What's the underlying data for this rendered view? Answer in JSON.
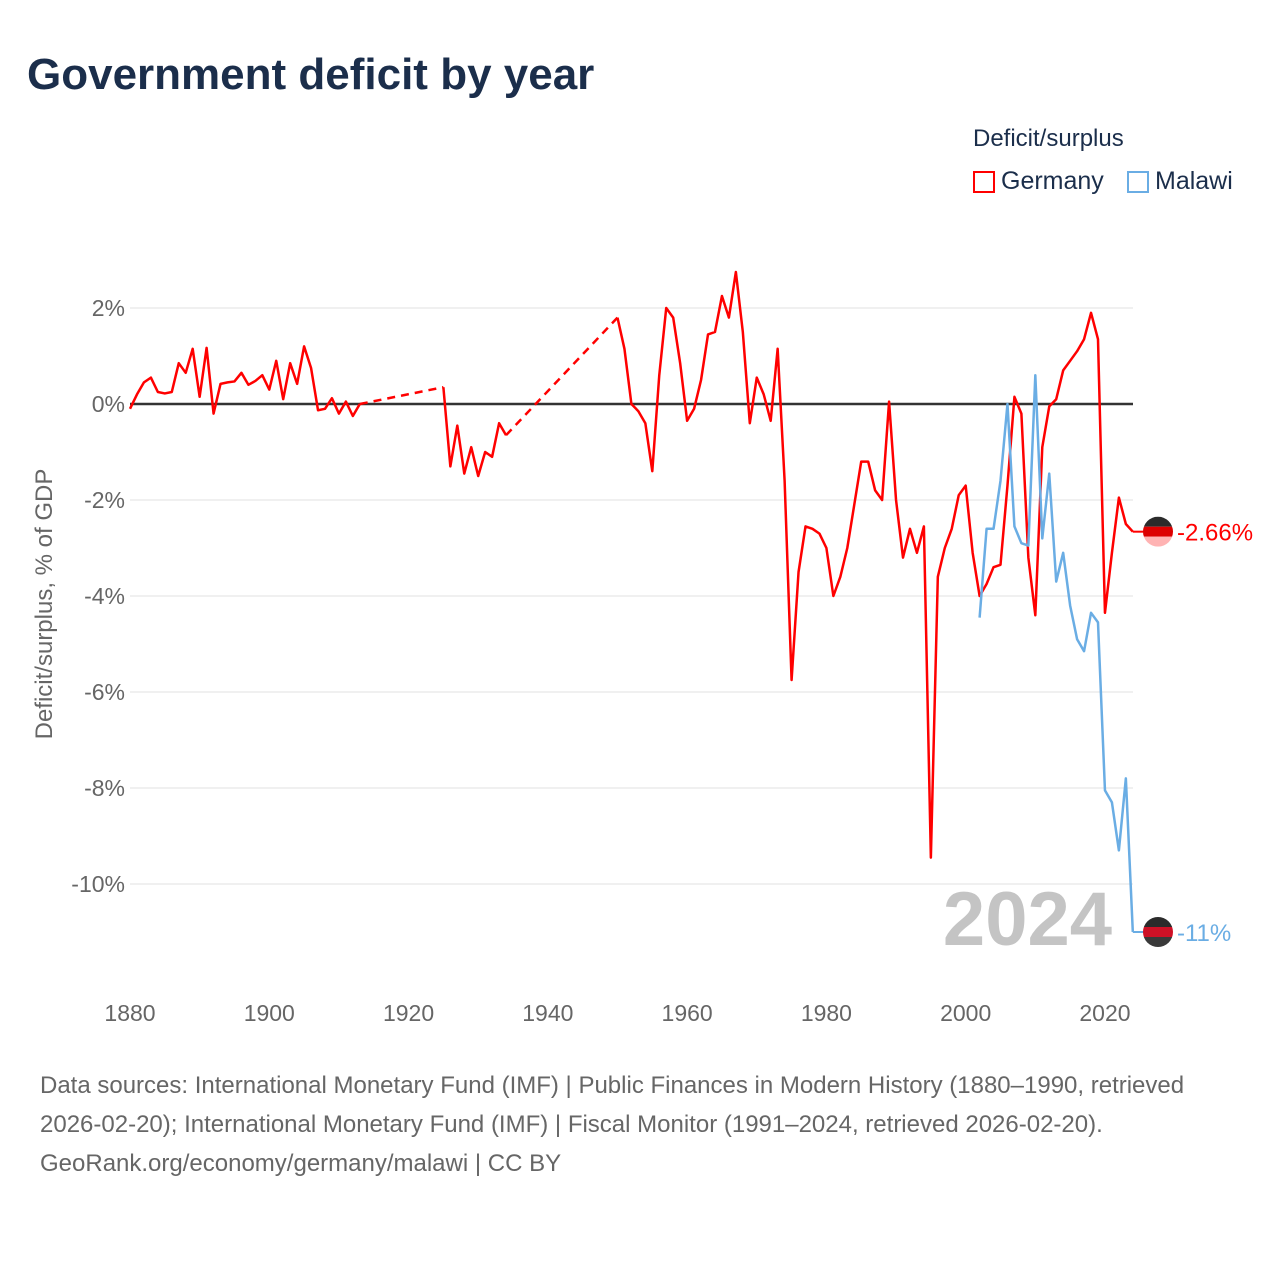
{
  "title": "Government deficit by year",
  "legend": {
    "title": "Deficit/surplus",
    "items": [
      {
        "label": "Germany",
        "color": "#ff0000"
      },
      {
        "label": "Malawi",
        "color": "#6aade4"
      }
    ]
  },
  "sources": "Data sources: International Monetary Fund (IMF) | Public Finances in Modern History (1880–1990, retrieved 2026-02-20); International Monetary Fund (IMF) | Fiscal Monitor (1991–2024, retrieved 2026-02-20).",
  "credit": "GeoRank.org/economy/germany/malawi | CC BY",
  "chart_data": {
    "type": "line",
    "title": "Government deficit by year",
    "xlabel": "",
    "ylabel": "Deficit/surplus, % of GDP",
    "xlim": [
      1880,
      2024
    ],
    "ylim": [
      -11.5,
      3
    ],
    "x_ticks": [
      1880,
      1900,
      1920,
      1940,
      1960,
      1980,
      2000,
      2020
    ],
    "x_tick_labels": [
      "1880",
      "1900",
      "1920",
      "1940",
      "1960",
      "1980",
      "2000",
      "2020"
    ],
    "y_ticks": [
      2,
      0,
      -2,
      -4,
      -6,
      -8,
      -10
    ],
    "y_tick_labels": [
      "2%",
      "0%",
      "-2%",
      "-4%",
      "-6%",
      "-8%",
      "-10%"
    ],
    "grid": true,
    "legend_position": "top-right",
    "year_watermark": "2024",
    "series": [
      {
        "name": "Germany",
        "color": "#ff0000",
        "end_label": "-2.66%",
        "points": [
          [
            1880,
            -0.1
          ],
          [
            1881,
            0.2
          ],
          [
            1882,
            0.45
          ],
          [
            1883,
            0.55
          ],
          [
            1884,
            0.25
          ],
          [
            1885,
            0.22
          ],
          [
            1886,
            0.25
          ],
          [
            1887,
            0.85
          ],
          [
            1888,
            0.65
          ],
          [
            1889,
            1.15
          ],
          [
            1890,
            0.15
          ],
          [
            1891,
            1.17
          ],
          [
            1892,
            -0.2
          ],
          [
            1893,
            0.42
          ],
          [
            1894,
            0.45
          ],
          [
            1895,
            0.47
          ],
          [
            1896,
            0.65
          ],
          [
            1897,
            0.4
          ],
          [
            1898,
            0.48
          ],
          [
            1899,
            0.6
          ],
          [
            1900,
            0.3
          ],
          [
            1901,
            0.9
          ],
          [
            1902,
            0.1
          ],
          [
            1903,
            0.85
          ],
          [
            1904,
            0.42
          ],
          [
            1905,
            1.2
          ],
          [
            1906,
            0.75
          ],
          [
            1907,
            -0.13
          ],
          [
            1908,
            -0.1
          ],
          [
            1909,
            0.12
          ],
          [
            1910,
            -0.2
          ],
          [
            1911,
            0.05
          ],
          [
            1912,
            -0.25
          ],
          [
            1913,
            0.0
          ],
          [
            1925,
            0.35
          ],
          [
            1926,
            -1.3
          ],
          [
            1927,
            -0.45
          ],
          [
            1928,
            -1.45
          ],
          [
            1929,
            -0.9
          ],
          [
            1930,
            -1.5
          ],
          [
            1931,
            -1.0
          ],
          [
            1932,
            -1.1
          ],
          [
            1933,
            -0.4
          ],
          [
            1934,
            -0.65
          ],
          [
            1950,
            1.8
          ],
          [
            1951,
            1.15
          ],
          [
            1952,
            0.0
          ],
          [
            1953,
            -0.15
          ],
          [
            1954,
            -0.4
          ],
          [
            1955,
            -1.4
          ],
          [
            1956,
            0.6
          ],
          [
            1957,
            2.0
          ],
          [
            1958,
            1.8
          ],
          [
            1959,
            0.85
          ],
          [
            1960,
            -0.35
          ],
          [
            1961,
            -0.1
          ],
          [
            1962,
            0.5
          ],
          [
            1963,
            1.45
          ],
          [
            1964,
            1.5
          ],
          [
            1965,
            2.25
          ],
          [
            1966,
            1.8
          ],
          [
            1967,
            2.75
          ],
          [
            1968,
            1.5
          ],
          [
            1969,
            -0.4
          ],
          [
            1970,
            0.55
          ],
          [
            1971,
            0.2
          ],
          [
            1972,
            -0.35
          ],
          [
            1973,
            1.15
          ],
          [
            1974,
            -1.6
          ],
          [
            1975,
            -5.75
          ],
          [
            1976,
            -3.5
          ],
          [
            1977,
            -2.55
          ],
          [
            1978,
            -2.6
          ],
          [
            1979,
            -2.7
          ],
          [
            1980,
            -3.0
          ],
          [
            1981,
            -4.0
          ],
          [
            1982,
            -3.6
          ],
          [
            1983,
            -3.0
          ],
          [
            1984,
            -2.1
          ],
          [
            1985,
            -1.2
          ],
          [
            1986,
            -1.2
          ],
          [
            1987,
            -1.8
          ],
          [
            1988,
            -2.0
          ],
          [
            1989,
            0.05
          ],
          [
            1990,
            -2.0
          ],
          [
            1991,
            -3.2
          ],
          [
            1992,
            -2.6
          ],
          [
            1993,
            -3.1
          ],
          [
            1994,
            -2.55
          ],
          [
            1995,
            -9.45
          ],
          [
            1996,
            -3.6
          ],
          [
            1997,
            -3.0
          ],
          [
            1998,
            -2.6
          ],
          [
            1999,
            -1.9
          ],
          [
            2000,
            -1.7
          ],
          [
            2001,
            -3.1
          ],
          [
            2002,
            -4.0
          ],
          [
            2003,
            -3.75
          ],
          [
            2004,
            -3.4
          ],
          [
            2005,
            -3.35
          ],
          [
            2006,
            -1.7
          ],
          [
            2007,
            0.15
          ],
          [
            2008,
            -0.2
          ],
          [
            2009,
            -3.2
          ],
          [
            2010,
            -4.4
          ],
          [
            2011,
            -0.9
          ],
          [
            2012,
            -0.05
          ],
          [
            2013,
            0.1
          ],
          [
            2014,
            0.7
          ],
          [
            2015,
            0.9
          ],
          [
            2016,
            1.1
          ],
          [
            2017,
            1.35
          ],
          [
            2018,
            1.9
          ],
          [
            2019,
            1.35
          ],
          [
            2020,
            -4.35
          ],
          [
            2021,
            -3.1
          ],
          [
            2022,
            -1.95
          ],
          [
            2023,
            -2.5
          ],
          [
            2024,
            -2.66
          ]
        ]
      },
      {
        "name": "Malawi",
        "color": "#6aade4",
        "end_label": "-11%",
        "points": [
          [
            2002,
            -4.45
          ],
          [
            2003,
            -2.6
          ],
          [
            2004,
            -2.6
          ],
          [
            2005,
            -1.6
          ],
          [
            2006,
            0.0
          ],
          [
            2007,
            -2.55
          ],
          [
            2008,
            -2.9
          ],
          [
            2009,
            -2.95
          ],
          [
            2010,
            0.6
          ],
          [
            2011,
            -2.8
          ],
          [
            2012,
            -1.45
          ],
          [
            2013,
            -3.7
          ],
          [
            2014,
            -3.1
          ],
          [
            2015,
            -4.2
          ],
          [
            2016,
            -4.9
          ],
          [
            2017,
            -5.15
          ],
          [
            2018,
            -4.35
          ],
          [
            2019,
            -4.55
          ],
          [
            2020,
            -8.05
          ],
          [
            2021,
            -8.3
          ],
          [
            2022,
            -9.3
          ],
          [
            2023,
            -7.8
          ],
          [
            2024,
            -11.0
          ]
        ]
      }
    ]
  }
}
